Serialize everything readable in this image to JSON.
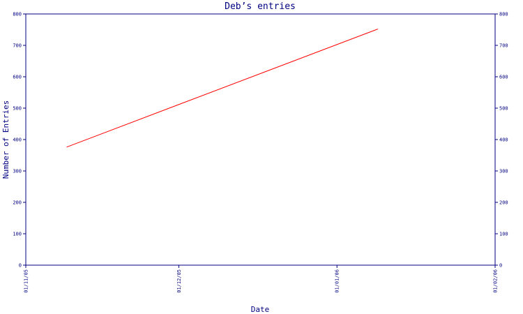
{
  "chart_data": {
    "type": "line",
    "title": "Deb’s entries",
    "xlabel": "Date",
    "ylabel": "Number of Entries",
    "x_tick_labels": [
      "01/11/05",
      "01/12/05",
      "01/01/06",
      "01/02/06"
    ],
    "x_ticks": [
      "2005-11-01",
      "2005-12-01",
      "2006-01-01",
      "2006-02-01"
    ],
    "xlim": [
      "2005-11-01",
      "2006-02-01"
    ],
    "y_ticks": [
      0,
      100,
      200,
      300,
      400,
      500,
      600,
      700,
      800
    ],
    "ylim": [
      0,
      800
    ],
    "right_axis_ticks": true,
    "grid": false,
    "series": [
      {
        "color": "#ff0000",
        "points": [
          {
            "x": "2005-11-09",
            "y": 376
          },
          {
            "x": "2006-01-09",
            "y": 752
          }
        ]
      }
    ],
    "colors": {
      "axis": "#000080",
      "text": "#000080",
      "line": "#ff0000"
    }
  }
}
